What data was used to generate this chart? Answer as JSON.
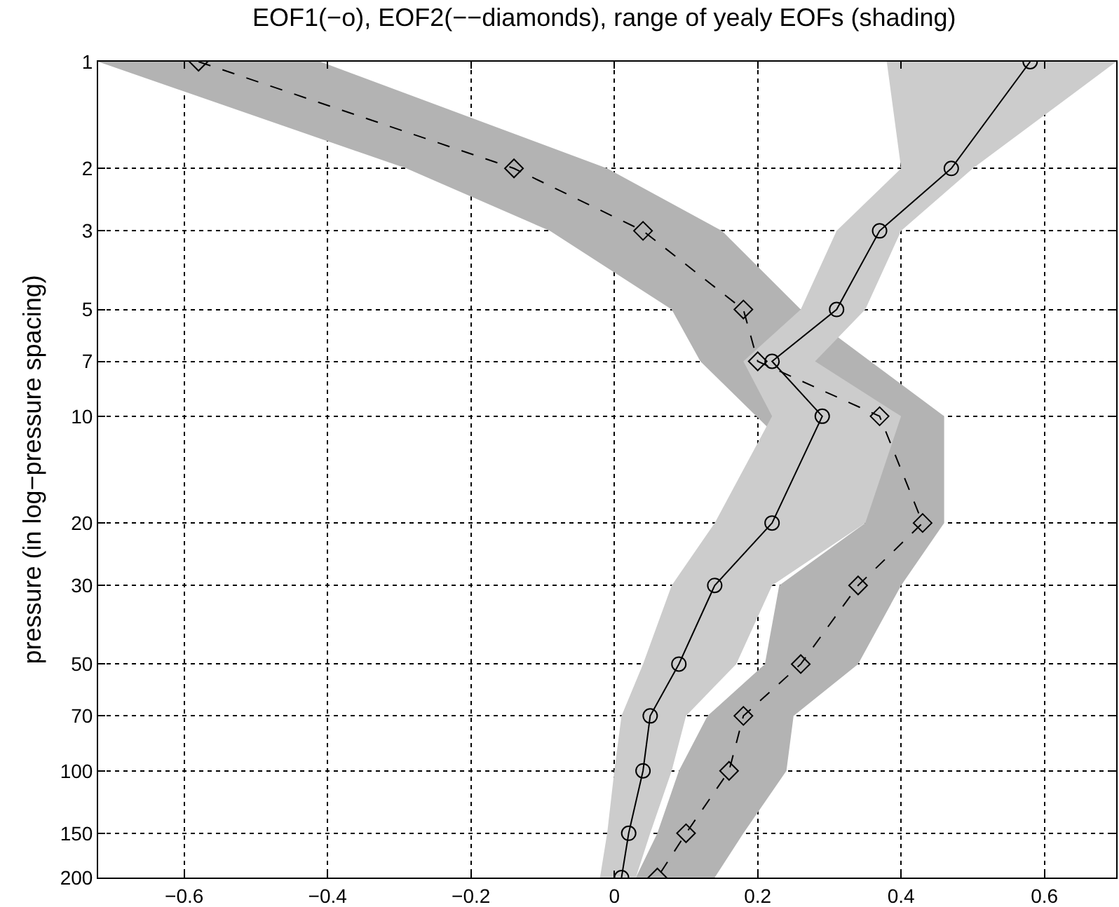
{
  "chart_data": {
    "type": "line",
    "title": "EOF1(−o), EOF2(−−diamonds), range of yealy EOFs (shading)",
    "ylabel": "pressure (in log−pressure spacing)",
    "log": "y",
    "grid": true,
    "xlim": [
      -0.72,
      0.7
    ],
    "xticks": [
      {
        "value": -0.6,
        "label": "−0.6"
      },
      {
        "value": -0.4,
        "label": "−0.4"
      },
      {
        "value": -0.2,
        "label": "−0.2"
      },
      0,
      0.2,
      0.4,
      0.6
    ],
    "ylim": [
      200,
      1
    ],
    "yticks": [
      1,
      2,
      3,
      5,
      7,
      10,
      20,
      30,
      50,
      70,
      100,
      150,
      200
    ],
    "series": [
      {
        "type": "area",
        "color": "#b3b3b3",
        "x": [
          -0.72,
          -0.29,
          -0.09,
          0.08,
          0.12,
          0.35,
          0.23,
          0.21,
          0.13,
          0.09,
          0.06,
          0.03,
          0.14,
          0.18,
          0.24,
          0.25,
          0.34,
          0.4,
          0.46,
          0.46,
          0.26,
          0.15,
          -0.01,
          -0.41
        ],
        "values": [
          1,
          2,
          3,
          5,
          7,
          20,
          30,
          50,
          70,
          100,
          150,
          200,
          200,
          150,
          100,
          70,
          50,
          30,
          20,
          10,
          5,
          3,
          2,
          1
        ]
      },
      {
        "type": "area",
        "color": "#cccccc",
        "x": [
          0.38,
          0.4,
          0.31,
          0.26,
          0.18,
          0.22,
          0.14,
          0.08,
          0.04,
          0.01,
          0,
          -0.01,
          -0.02,
          0.03,
          0.05,
          0.08,
          0.1,
          0.17,
          0.22,
          0.35,
          0.4,
          0.28,
          0.35,
          0.4,
          0.5,
          0.7
        ],
        "values": [
          1,
          2,
          3,
          5,
          7,
          10,
          20,
          30,
          50,
          70,
          100,
          150,
          200,
          200,
          150,
          100,
          70,
          50,
          30,
          20,
          10,
          7,
          5,
          3,
          2,
          1
        ]
      },
      {
        "color": "#000000",
        "marker": "circle",
        "line_style": "solid",
        "x": [
          0.58,
          0.47,
          0.37,
          0.31,
          0.22,
          0.29,
          0.22,
          0.14,
          0.09,
          0.05,
          0.04,
          0.02,
          0.01
        ],
        "values": [
          1,
          2,
          3,
          5,
          7,
          10,
          20,
          30,
          50,
          70,
          100,
          150,
          200
        ]
      },
      {
        "color": "#000000",
        "marker": "diamond",
        "line_style": "dashed",
        "x": [
          -0.58,
          -0.14,
          0.04,
          0.18,
          0.2,
          0.37,
          0.43,
          0.34,
          0.26,
          0.18,
          0.16,
          0.1,
          0.06
        ],
        "values": [
          1,
          2,
          3,
          5,
          7,
          10,
          20,
          30,
          50,
          70,
          100,
          150,
          200
        ]
      }
    ]
  }
}
